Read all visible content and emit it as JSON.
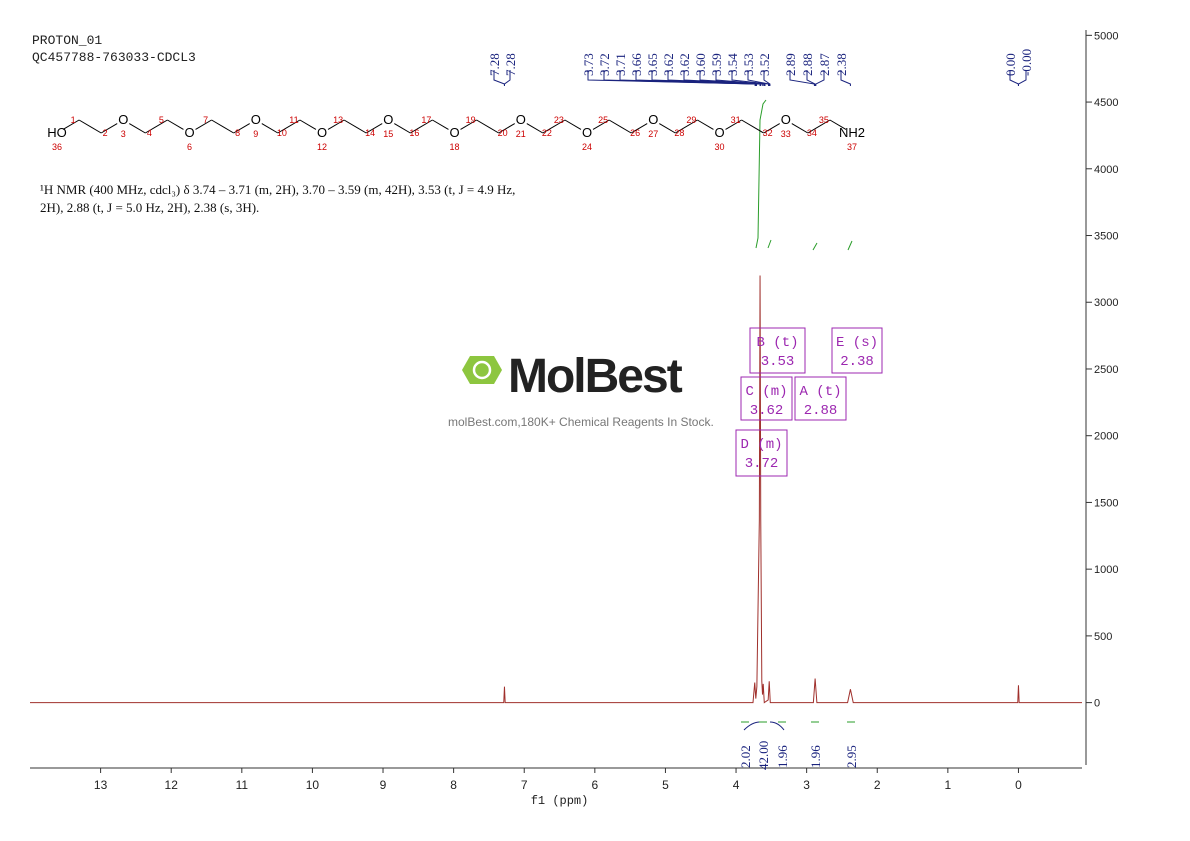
{
  "header": {
    "experiment": "PROTON_01",
    "sample": "QC457788-763033-CDCL3"
  },
  "description": [
    "¹H NMR (400 MHz, cdcl₃) δ 3.74 – 3.71 (m, 2H), 3.70 – 3.59 (m, 42H), 3.53 (t, J = 4.9 Hz,",
    "2H), 2.88 (t, J = 5.0 Hz, 2H), 2.38 (s, 3H)."
  ],
  "watermark": {
    "brand": "MolBest",
    "tagline": "molBest.com,180K+ Chemical Reagents In Stock."
  },
  "structure": {
    "nodes": [
      {
        "symbol": "HO",
        "number": 36
      },
      {
        "number": 1
      },
      {
        "number": 2
      },
      {
        "symbol": "O",
        "number": 3
      },
      {
        "number": 4
      },
      {
        "number": 5
      },
      {
        "symbol": "O",
        "number": 6
      },
      {
        "number": 7
      },
      {
        "number": 8
      },
      {
        "symbol": "O",
        "number": 9
      },
      {
        "number": 10
      },
      {
        "number": 11
      },
      {
        "symbol": "O",
        "number": 12
      },
      {
        "number": 13
      },
      {
        "number": 14
      },
      {
        "symbol": "O",
        "number": 15
      },
      {
        "number": 16
      },
      {
        "number": 17
      },
      {
        "symbol": "O",
        "number": 18
      },
      {
        "number": 19
      },
      {
        "number": 20
      },
      {
        "symbol": "O",
        "number": 21
      },
      {
        "number": 22
      },
      {
        "number": 23
      },
      {
        "symbol": "O",
        "number": 24
      },
      {
        "number": 25
      },
      {
        "number": 26
      },
      {
        "symbol": "O",
        "number": 27
      },
      {
        "number": 28
      },
      {
        "number": 29
      },
      {
        "symbol": "O",
        "number": 30
      },
      {
        "number": 31
      },
      {
        "number": 32
      },
      {
        "symbol": "O",
        "number": 33
      },
      {
        "number": 34
      },
      {
        "number": 35
      },
      {
        "symbol": "NH2",
        "number": 37
      }
    ]
  },
  "chart_data": {
    "type": "line",
    "xlabel": "f1 (ppm)",
    "color": "#a0302c",
    "x": [
      14,
      7.29,
      7.28,
      7.27,
      3.76,
      3.735,
      3.72,
      3.705,
      3.67,
      3.66,
      3.65,
      3.635,
      3.625,
      3.615,
      3.6,
      3.545,
      3.53,
      3.515,
      2.905,
      2.88,
      2.855,
      2.42,
      2.38,
      2.34,
      0.01,
      0.0,
      -0.01,
      -0.9
    ],
    "values": [
      0,
      0,
      120,
      0,
      0,
      150,
      30,
      120,
      1370,
      3200,
      1370,
      160,
      60,
      140,
      0,
      20,
      160,
      0,
      0,
      180,
      0,
      0,
      100,
      0,
      0,
      130,
      0,
      0
    ],
    "xlim": [
      14,
      -0.9
    ],
    "xticks": [
      13,
      12,
      11,
      10,
      9,
      8,
      7,
      6,
      5,
      4,
      3,
      2,
      1,
      0
    ],
    "ylim": [
      -490,
      5040
    ],
    "yticks": [
      0,
      500,
      1000,
      1500,
      2000,
      2500,
      3000,
      3500,
      4000,
      4500,
      5000
    ],
    "peak_labels": [
      {
        "value": 7.28,
        "label": "7.28"
      },
      {
        "value": 7.28,
        "label": "7.28"
      },
      {
        "value": 3.73,
        "label": "3.73"
      },
      {
        "value": 3.72,
        "label": "3.72"
      },
      {
        "value": 3.71,
        "label": "3.71"
      },
      {
        "value": 3.66,
        "label": "3.66"
      },
      {
        "value": 3.65,
        "label": "3.65"
      },
      {
        "value": 3.62,
        "label": "3.62"
      },
      {
        "value": 3.62,
        "label": "3.62"
      },
      {
        "value": 3.6,
        "label": "3.60"
      },
      {
        "value": 3.59,
        "label": "3.59"
      },
      {
        "value": 3.54,
        "label": "3.54"
      },
      {
        "value": 3.53,
        "label": "3.53"
      },
      {
        "value": 3.52,
        "label": "3.52"
      },
      {
        "value": 2.89,
        "label": "2.89"
      },
      {
        "value": 2.88,
        "label": "2.88"
      },
      {
        "value": 2.87,
        "label": "2.87"
      },
      {
        "value": 2.38,
        "label": "2.38"
      },
      {
        "value": 0,
        "label": "0.00"
      },
      {
        "value": 0,
        "label": "-0.00"
      }
    ],
    "multiplets": [
      {
        "name": "B (t)",
        "shift": 3.53
      },
      {
        "name": "E (s)",
        "shift": 2.38
      },
      {
        "name": "C (m)",
        "shift": 3.62
      },
      {
        "name": "A (t)",
        "shift": 2.88
      },
      {
        "name": "D (m)",
        "shift": 3.72
      }
    ],
    "integrals": [
      {
        "value": 2.02,
        "label": "2.02"
      },
      {
        "value": 42.0,
        "label": "42.00"
      },
      {
        "value": 1.96,
        "label": "1.96"
      },
      {
        "value": 1.96,
        "label": "1.96"
      },
      {
        "value": 2.95,
        "label": "2.95"
      }
    ]
  }
}
